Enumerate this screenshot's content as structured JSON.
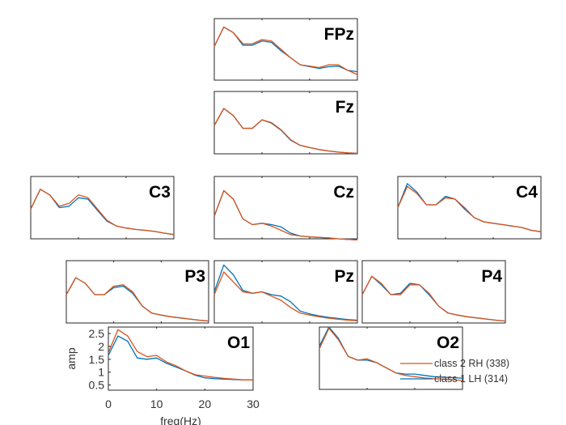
{
  "colors": {
    "class2": "#D95319",
    "class1": "#0072BD",
    "axes": "#262626"
  },
  "chart_data": [
    {
      "type": "line",
      "title": "FPz",
      "xlim": [
        0,
        30
      ],
      "ylim": [
        0.5,
        2.7
      ],
      "x": [
        0,
        2,
        4,
        6,
        8,
        10,
        12,
        14,
        16,
        18,
        20,
        22,
        24,
        26,
        28,
        30
      ],
      "series": [
        {
          "name": "class 2 RH (338)",
          "values": [
            1.7,
            2.4,
            2.2,
            1.8,
            1.8,
            1.95,
            1.9,
            1.6,
            1.3,
            1.05,
            1.0,
            0.95,
            1.05,
            1.05,
            0.85,
            0.7
          ]
        },
        {
          "name": "class 1 LH (314)",
          "values": [
            1.7,
            2.4,
            2.2,
            1.75,
            1.75,
            1.9,
            1.85,
            1.55,
            1.3,
            1.05,
            0.98,
            0.92,
            0.98,
            1.0,
            0.85,
            0.8
          ]
        }
      ]
    },
    {
      "type": "line",
      "title": "Fz",
      "xlim": [
        0,
        30
      ],
      "ylim": [
        0.5,
        2.7
      ],
      "x": [
        0,
        2,
        4,
        6,
        8,
        10,
        12,
        14,
        16,
        18,
        20,
        22,
        24,
        26,
        28,
        30
      ],
      "series": [
        {
          "name": "class 2 RH (338)",
          "values": [
            1.5,
            2.1,
            1.85,
            1.4,
            1.4,
            1.7,
            1.6,
            1.35,
            1.0,
            0.8,
            0.72,
            0.65,
            0.6,
            0.56,
            0.53,
            0.52
          ]
        },
        {
          "name": "class 1 LH (314)",
          "values": [
            1.5,
            2.1,
            1.85,
            1.4,
            1.4,
            1.7,
            1.58,
            1.33,
            0.98,
            0.8,
            0.72,
            0.65,
            0.6,
            0.56,
            0.53,
            0.52
          ]
        }
      ]
    },
    {
      "type": "line",
      "title": "C3",
      "xlim": [
        0,
        30
      ],
      "ylim": [
        0.5,
        2.7
      ],
      "x": [
        0,
        2,
        4,
        6,
        8,
        10,
        12,
        14,
        16,
        18,
        20,
        22,
        24,
        26,
        28,
        30
      ],
      "series": [
        {
          "name": "class 2 RH (338)",
          "values": [
            1.55,
            2.25,
            2.05,
            1.65,
            1.75,
            2.05,
            1.95,
            1.55,
            1.15,
            0.95,
            0.88,
            0.83,
            0.8,
            0.76,
            0.7,
            0.65
          ]
        },
        {
          "name": "class 1 LH (314)",
          "values": [
            1.55,
            2.25,
            2.05,
            1.6,
            1.65,
            1.95,
            1.9,
            1.5,
            1.12,
            0.95,
            0.88,
            0.83,
            0.8,
            0.76,
            0.7,
            0.65
          ]
        }
      ]
    },
    {
      "type": "line",
      "title": "Cz",
      "xlim": [
        0,
        30
      ],
      "ylim": [
        0.5,
        2.7
      ],
      "x": [
        0,
        2,
        4,
        6,
        8,
        10,
        12,
        14,
        16,
        18,
        20,
        22,
        24,
        26,
        28,
        30
      ],
      "series": [
        {
          "name": "class 2 RH (338)",
          "values": [
            1.3,
            2.2,
            1.9,
            1.2,
            1.0,
            1.05,
            0.95,
            0.8,
            0.65,
            0.6,
            0.57,
            0.55,
            0.53,
            0.5,
            0.48,
            0.46
          ]
        },
        {
          "name": "class 1 LH (314)",
          "values": [
            1.3,
            2.2,
            1.9,
            1.2,
            1.0,
            1.05,
            1.0,
            0.92,
            0.7,
            0.6,
            0.57,
            0.55,
            0.53,
            0.5,
            0.48,
            0.46
          ]
        }
      ]
    },
    {
      "type": "line",
      "title": "C4",
      "xlim": [
        0,
        30
      ],
      "ylim": [
        0.5,
        2.7
      ],
      "x": [
        0,
        2,
        4,
        6,
        8,
        10,
        12,
        14,
        16,
        18,
        20,
        22,
        24,
        26,
        28,
        30
      ],
      "series": [
        {
          "name": "class 2 RH (338)",
          "values": [
            1.6,
            2.35,
            2.1,
            1.7,
            1.7,
            1.95,
            1.9,
            1.6,
            1.25,
            1.1,
            1.05,
            1.0,
            0.95,
            0.9,
            0.8,
            0.75
          ]
        },
        {
          "name": "class 1 LH (314)",
          "values": [
            1.6,
            2.45,
            2.15,
            1.7,
            1.7,
            2.0,
            1.9,
            1.55,
            1.25,
            1.1,
            1.05,
            1.0,
            0.95,
            0.9,
            0.8,
            0.75
          ]
        }
      ]
    },
    {
      "type": "line",
      "title": "P3",
      "xlim": [
        0,
        30
      ],
      "ylim": [
        0.5,
        2.7
      ],
      "x": [
        0,
        2,
        4,
        6,
        8,
        10,
        12,
        14,
        16,
        18,
        20,
        22,
        24,
        26,
        28,
        30
      ],
      "series": [
        {
          "name": "class 2 RH (338)",
          "values": [
            1.5,
            2.1,
            1.9,
            1.5,
            1.5,
            1.8,
            1.85,
            1.6,
            1.1,
            0.85,
            0.78,
            0.72,
            0.68,
            0.64,
            0.6,
            0.57
          ]
        },
        {
          "name": "class 1 LH (314)",
          "values": [
            1.5,
            2.1,
            1.9,
            1.5,
            1.5,
            1.75,
            1.8,
            1.55,
            1.1,
            0.85,
            0.78,
            0.72,
            0.68,
            0.64,
            0.6,
            0.57
          ]
        }
      ]
    },
    {
      "type": "line",
      "title": "Pz",
      "xlim": [
        0,
        30
      ],
      "ylim": [
        0.5,
        2.7
      ],
      "x": [
        0,
        2,
        4,
        6,
        8,
        10,
        12,
        14,
        16,
        18,
        20,
        22,
        24,
        26,
        28,
        30
      ],
      "series": [
        {
          "name": "class 2 RH (338)",
          "values": [
            1.5,
            2.3,
            1.95,
            1.6,
            1.55,
            1.6,
            1.45,
            1.3,
            1.05,
            0.85,
            0.78,
            0.72,
            0.67,
            0.63,
            0.6,
            0.58
          ]
        },
        {
          "name": "class 1 LH (314)",
          "values": [
            1.6,
            2.55,
            2.2,
            1.65,
            1.55,
            1.6,
            1.5,
            1.45,
            1.25,
            0.92,
            0.82,
            0.75,
            0.7,
            0.66,
            0.62,
            0.6
          ]
        }
      ]
    },
    {
      "type": "line",
      "title": "P4",
      "xlim": [
        0,
        30
      ],
      "ylim": [
        0.5,
        2.7
      ],
      "x": [
        0,
        2,
        4,
        6,
        8,
        10,
        12,
        14,
        16,
        18,
        20,
        22,
        24,
        26,
        28,
        30
      ],
      "series": [
        {
          "name": "class 2 RH (338)",
          "values": [
            1.5,
            2.15,
            1.9,
            1.5,
            1.5,
            1.85,
            1.85,
            1.55,
            1.1,
            0.85,
            0.78,
            0.72,
            0.68,
            0.64,
            0.6,
            0.57
          ]
        },
        {
          "name": "class 1 LH (314)",
          "values": [
            1.5,
            2.15,
            1.85,
            1.5,
            1.55,
            1.9,
            1.85,
            1.5,
            1.1,
            0.85,
            0.78,
            0.72,
            0.68,
            0.64,
            0.6,
            0.57
          ]
        }
      ]
    },
    {
      "type": "line",
      "title": "O1",
      "xlabel": "freq(Hz)",
      "ylabel": "amp",
      "xlim": [
        0,
        30
      ],
      "ylim": [
        0.3,
        2.75
      ],
      "xticks": [
        "0",
        "10",
        "20",
        "30"
      ],
      "yticks": [
        "0.5",
        "1",
        "1.5",
        "2",
        "2.5"
      ],
      "x": [
        0,
        2,
        4,
        6,
        8,
        10,
        12,
        14,
        16,
        18,
        20,
        22,
        24,
        26,
        28,
        30
      ],
      "series": [
        {
          "name": "class 2 RH (338)",
          "values": [
            1.75,
            2.65,
            2.4,
            1.8,
            1.6,
            1.65,
            1.4,
            1.25,
            1.05,
            0.9,
            0.85,
            0.8,
            0.76,
            0.73,
            0.7,
            0.7
          ]
        },
        {
          "name": "class 1 LH (314)",
          "values": [
            1.65,
            2.4,
            2.2,
            1.55,
            1.5,
            1.55,
            1.35,
            1.2,
            1.05,
            0.88,
            0.78,
            0.75,
            0.73,
            0.71,
            0.7,
            0.7
          ]
        }
      ]
    },
    {
      "type": "line",
      "title": "O2",
      "xlim": [
        0,
        30
      ],
      "ylim": [
        0.3,
        2.75
      ],
      "legend": [
        "class 2 RH (338)",
        "class 1 LH (314)"
      ],
      "legend_position": "bottom-right",
      "x": [
        0,
        2,
        4,
        6,
        8,
        10,
        12,
        14,
        16,
        18,
        20,
        22,
        24,
        26,
        28,
        30
      ],
      "series": [
        {
          "name": "class 2 RH (338)",
          "values": [
            1.9,
            2.7,
            2.25,
            1.6,
            1.45,
            1.5,
            1.35,
            1.15,
            0.95,
            0.85,
            0.8,
            0.75,
            0.72,
            0.7,
            0.68,
            0.65
          ]
        },
        {
          "name": "class 1 LH (314)",
          "values": [
            2.0,
            2.75,
            2.3,
            1.6,
            1.45,
            1.45,
            1.35,
            1.15,
            0.95,
            0.9,
            0.9,
            0.85,
            0.8,
            0.78,
            0.76,
            0.74
          ]
        }
      ]
    }
  ]
}
